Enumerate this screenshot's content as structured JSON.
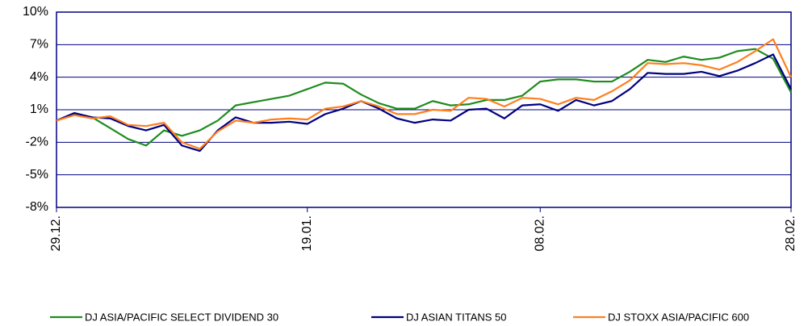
{
  "chart_data": {
    "type": "line",
    "categories": [
      "29.12.",
      null,
      null,
      null,
      null,
      null,
      null,
      null,
      null,
      null,
      null,
      null,
      null,
      null,
      "19.01.",
      null,
      null,
      null,
      null,
      null,
      null,
      null,
      null,
      null,
      null,
      null,
      null,
      "08.02.",
      null,
      null,
      null,
      null,
      null,
      null,
      null,
      null,
      null,
      null,
      null,
      null,
      null,
      "28.02."
    ],
    "series": [
      {
        "name": "DJ ASIA/PACIFIC SELECT DIVIDEND 30",
        "color": "#1e8c1e",
        "values": [
          0.0,
          0.6,
          0.3,
          -0.7,
          -1.7,
          -2.3,
          -0.9,
          -1.4,
          -0.9,
          0.0,
          1.4,
          1.7,
          2.0,
          2.3,
          2.9,
          3.5,
          3.4,
          2.4,
          1.6,
          1.1,
          1.1,
          1.8,
          1.4,
          1.5,
          1.9,
          1.9,
          2.3,
          3.6,
          3.8,
          3.8,
          3.6,
          3.6,
          4.5,
          5.6,
          5.4,
          5.9,
          5.6,
          5.8,
          6.4,
          6.6,
          5.7,
          2.6
        ]
      },
      {
        "name": "DJ ASIAN TITANS 50",
        "color": "#000080",
        "values": [
          0.0,
          0.7,
          0.3,
          0.2,
          -0.5,
          -0.9,
          -0.4,
          -2.3,
          -2.8,
          -0.9,
          0.3,
          -0.2,
          -0.2,
          -0.1,
          -0.3,
          0.6,
          1.1,
          1.8,
          1.1,
          0.2,
          -0.2,
          0.1,
          0.0,
          1.0,
          1.1,
          0.2,
          1.4,
          1.5,
          0.9,
          1.9,
          1.4,
          1.8,
          2.9,
          4.4,
          4.3,
          4.3,
          4.5,
          4.1,
          4.6,
          5.3,
          6.1,
          2.9
        ]
      },
      {
        "name": "DJ STOXX ASIA/PACIFIC 600",
        "color": "#ff7f1e",
        "values": [
          0.0,
          0.5,
          0.2,
          0.4,
          -0.4,
          -0.5,
          -0.2,
          -2.0,
          -2.6,
          -1.0,
          0.0,
          -0.2,
          0.1,
          0.2,
          0.1,
          1.1,
          1.3,
          1.8,
          1.3,
          0.6,
          0.6,
          1.0,
          0.9,
          2.1,
          2.0,
          1.3,
          2.1,
          2.0,
          1.5,
          2.1,
          1.9,
          2.7,
          3.7,
          5.3,
          5.2,
          5.3,
          5.1,
          4.7,
          5.4,
          6.4,
          7.5,
          4.0
        ]
      }
    ],
    "ylim": [
      -8,
      10
    ],
    "yticks": [
      {
        "value": -8,
        "label": "-8%"
      },
      {
        "value": -5,
        "label": "-5%"
      },
      {
        "value": -2,
        "label": "-2%"
      },
      {
        "value": 1,
        "label": "1%"
      },
      {
        "value": 4,
        "label": "4%"
      },
      {
        "value": 7,
        "label": "7%"
      },
      {
        "value": 10,
        "label": "10%"
      }
    ],
    "grid": true
  }
}
